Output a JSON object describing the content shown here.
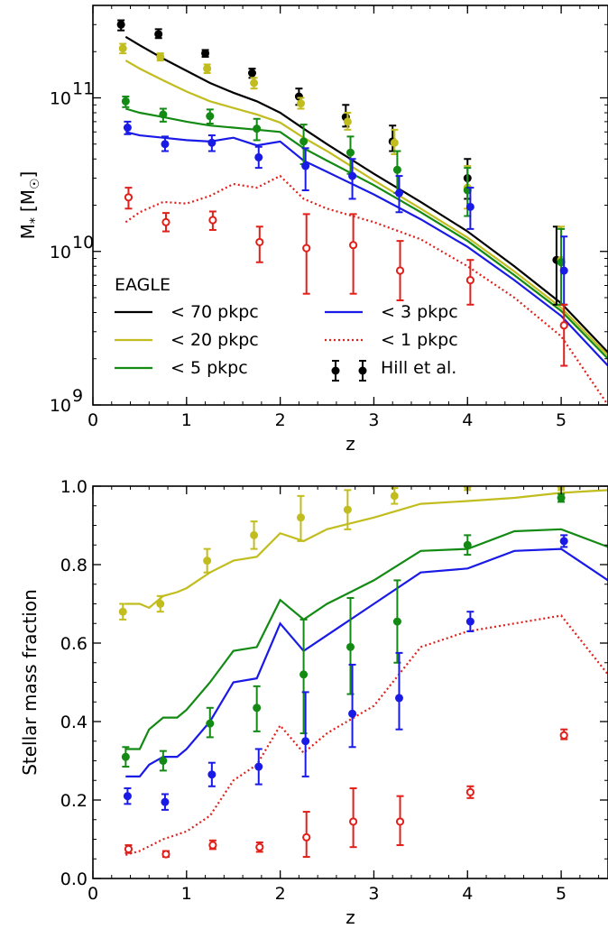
{
  "chart_data": [
    {
      "type": "line",
      "xlabel": "z",
      "ylabel_main": "M",
      "ylabel_sub": "*",
      "ylabel_unit": "[M",
      "ylabel_sun": "☉",
      "ylabel_close": "]",
      "xlim": [
        0,
        5.5
      ],
      "ylim": [
        1000000000.0,
        400000000000.0
      ],
      "yscale": "log",
      "grid": false,
      "x_ticks": [
        "0",
        "1",
        "2",
        "3",
        "4",
        "5"
      ],
      "y_ticks": [
        {
          "base": "10",
          "exp": "9",
          "value": 1000000000.0
        },
        {
          "base": "10",
          "exp": "10",
          "value": 10000000000.0
        },
        {
          "base": "10",
          "exp": "11",
          "value": 100000000000.0
        }
      ],
      "legend": {
        "placement": "lower-left",
        "title": "EAGLE",
        "entries": [
          {
            "label": "< 70 pkpc",
            "color": "#000000",
            "style": "solid"
          },
          {
            "label": "< 20 pkpc",
            "color": "#c2bd1f",
            "style": "solid"
          },
          {
            "label": "< 5 pkpc",
            "color": "#138a13",
            "style": "solid"
          },
          {
            "label": "< 3 pkpc",
            "color": "#1a1ae6",
            "style": "solid"
          },
          {
            "label": "< 1 pkpc",
            "color": "#e0201b",
            "style": "dotted"
          },
          {
            "label": "Hill et al.",
            "color": "#000000",
            "style": "errorbar"
          }
        ]
      },
      "series": [
        {
          "color": "#000000",
          "style": "solid",
          "x": [
            0.35,
            0.5,
            0.75,
            1.0,
            1.25,
            1.5,
            1.75,
            2.0,
            2.25,
            2.5,
            3.0,
            3.5,
            4.0,
            4.5,
            5.0,
            5.5
          ],
          "y": [
            250000000000.0,
            220000000000.0,
            180000000000.0,
            150000000000.0,
            125000000000.0,
            108000000000.0,
            95000000000.0,
            80000000000.0,
            63000000000.0,
            50000000000.0,
            32000000000.0,
            21000000000.0,
            13500000000.0,
            8000000000.0,
            4600000000.0,
            2200000000.0
          ]
        },
        {
          "color": "#c2bd1f",
          "style": "solid",
          "x": [
            0.35,
            0.5,
            0.75,
            1.0,
            1.25,
            1.5,
            1.75,
            2.0,
            2.25,
            2.5,
            3.0,
            3.5,
            4.0,
            4.5,
            5.0,
            5.5
          ],
          "y": [
            175000000000.0,
            155000000000.0,
            130000000000.0,
            110000000000.0,
            95000000000.0,
            86000000000.0,
            78000000000.0,
            69000000000.0,
            55000000000.0,
            45000000000.0,
            29000000000.0,
            19000000000.0,
            12300000000.0,
            7400000000.0,
            4300000000.0,
            2100000000.0
          ]
        },
        {
          "color": "#138a13",
          "style": "solid",
          "x": [
            0.35,
            0.5,
            0.75,
            1.0,
            1.25,
            1.5,
            1.75,
            2.0,
            2.25,
            2.5,
            3.0,
            3.5,
            4.0,
            4.5,
            5.0,
            5.5
          ],
          "y": [
            85000000000.0,
            80000000000.0,
            75000000000.0,
            70000000000.0,
            66000000000.0,
            64000000000.0,
            62000000000.0,
            60000000000.0,
            47000000000.0,
            39000000000.0,
            27000000000.0,
            18000000000.0,
            11700000000.0,
            7000000000.0,
            4100000000.0,
            2000000000.0
          ]
        },
        {
          "color": "#1a1ae6",
          "style": "solid",
          "x": [
            0.35,
            0.5,
            0.75,
            1.0,
            1.25,
            1.5,
            1.75,
            2.0,
            2.25,
            2.5,
            3.0,
            3.5,
            4.0,
            4.5,
            5.0,
            5.5
          ],
          "y": [
            60000000000.0,
            57000000000.0,
            55000000000.0,
            53000000000.0,
            52000000000.0,
            55000000000.0,
            49000000000.0,
            52000000000.0,
            39000000000.0,
            33000000000.0,
            23500000000.0,
            16200000000.0,
            10700000000.0,
            6500000000.0,
            3800000000.0,
            1800000000.0
          ]
        },
        {
          "color": "#e0201b",
          "style": "dotted",
          "x": [
            0.35,
            0.5,
            0.75,
            1.0,
            1.25,
            1.5,
            1.75,
            2.0,
            2.25,
            2.5,
            3.0,
            3.5,
            4.0,
            4.5,
            5.0,
            5.5
          ],
          "y": [
            15500000000.0,
            18000000000.0,
            21000000000.0,
            20500000000.0,
            23000000000.0,
            27500000000.0,
            26000000000.0,
            31000000000.0,
            22000000000.0,
            19000000000.0,
            15500000000.0,
            12000000000.0,
            8000000000.0,
            5000000000.0,
            2800000000.0,
            1000000000.0
          ]
        }
      ],
      "points": [
        {
          "color": "#000000",
          "filled": true,
          "x": [
            0.3,
            0.7,
            1.2,
            1.7,
            2.2,
            2.7,
            3.2,
            4.0,
            4.95
          ],
          "y": [
            300000000000.0,
            260000000000.0,
            195000000000.0,
            145000000000.0,
            102000000000.0,
            75000000000.0,
            52000000000.0,
            30000000000.0,
            8800000000.0
          ],
          "lo": [
            275000000000.0,
            245000000000.0,
            185000000000.0,
            135000000000.0,
            90000000000.0,
            65000000000.0,
            45000000000.0,
            22000000000.0,
            4500000000.0
          ],
          "hi": [
            320000000000.0,
            280000000000.0,
            205000000000.0,
            155000000000.0,
            115000000000.0,
            90000000000.0,
            66000000000.0,
            40000000000.0,
            14500000000.0
          ]
        },
        {
          "color": "#c2bd1f",
          "filled": true,
          "x": [
            0.32,
            0.72,
            1.22,
            1.72,
            2.22,
            2.72,
            3.22,
            4.0,
            5.0
          ],
          "y": [
            210000000000.0,
            185000000000.0,
            155000000000.0,
            125000000000.0,
            92000000000.0,
            70000000000.0,
            51000000000.0,
            26000000000.0,
            8800000000.0
          ],
          "lo": [
            195000000000.0,
            175000000000.0,
            145000000000.0,
            115000000000.0,
            85000000000.0,
            62000000000.0,
            43000000000.0,
            19000000000.0,
            4500000000.0
          ],
          "hi": [
            225000000000.0,
            195000000000.0,
            165000000000.0,
            135000000000.0,
            100000000000.0,
            80000000000.0,
            62000000000.0,
            36000000000.0,
            14500000000.0
          ]
        },
        {
          "color": "#138a13",
          "filled": true,
          "x": [
            0.35,
            0.75,
            1.25,
            1.75,
            2.25,
            2.75,
            3.25,
            4.0,
            5.0
          ],
          "y": [
            95000000000.0,
            78000000000.0,
            76000000000.0,
            63000000000.0,
            52000000000.0,
            44000000000.0,
            34000000000.0,
            25000000000.0,
            8500000000.0
          ],
          "lo": [
            87000000000.0,
            70000000000.0,
            68000000000.0,
            53000000000.0,
            37000000000.0,
            32000000000.0,
            24000000000.0,
            17000000000.0,
            4500000000.0
          ],
          "hi": [
            102000000000.0,
            85000000000.0,
            84000000000.0,
            73000000000.0,
            67000000000.0,
            56000000000.0,
            45000000000.0,
            35000000000.0,
            14000000000.0
          ]
        },
        {
          "color": "#1a1ae6",
          "filled": true,
          "x": [
            0.37,
            0.77,
            1.27,
            1.77,
            2.27,
            2.77,
            3.27,
            4.03,
            5.03
          ],
          "y": [
            64000000000.0,
            50000000000.0,
            51000000000.0,
            41000000000.0,
            36000000000.0,
            31000000000.0,
            24000000000.0,
            19500000000.0,
            7500000000.0
          ],
          "lo": [
            58000000000.0,
            45000000000.0,
            45000000000.0,
            35000000000.0,
            25000000000.0,
            22000000000.0,
            18000000000.0,
            14000000000.0,
            4500000000.0
          ],
          "hi": [
            70000000000.0,
            56000000000.0,
            57000000000.0,
            48000000000.0,
            47000000000.0,
            40000000000.0,
            31000000000.0,
            26000000000.0,
            12500000000.0
          ]
        },
        {
          "color": "#e0201b",
          "filled": false,
          "x": [
            0.38,
            0.78,
            1.28,
            1.78,
            2.28,
            2.78,
            3.28,
            4.03,
            5.03
          ],
          "y": [
            22500000000.0,
            15500000000.0,
            16000000000.0,
            11500000000.0,
            10500000000.0,
            11000000000.0,
            7500000000.0,
            6500000000.0,
            3300000000.0
          ],
          "lo": [
            19000000000.0,
            13500000000.0,
            13800000000.0,
            8500000000.0,
            5300000000.0,
            5300000000.0,
            4800000000.0,
            4500000000.0,
            1800000000.0
          ],
          "hi": [
            26000000000.0,
            17800000000.0,
            18200000000.0,
            14500000000.0,
            17500000000.0,
            17500000000.0,
            11700000000.0,
            8800000000.0,
            4500000000.0
          ]
        }
      ]
    },
    {
      "type": "line",
      "xlabel": "z",
      "ylabel": "Stellar mass fraction",
      "xlim": [
        0,
        5.5
      ],
      "ylim": [
        0,
        1.0
      ],
      "grid": false,
      "x_ticks": [
        "0",
        "1",
        "2",
        "3",
        "4",
        "5"
      ],
      "y_ticks": [
        "0.0",
        "0.2",
        "0.4",
        "0.6",
        "0.8",
        "1.0"
      ],
      "series": [
        {
          "color": "#c2bd1f",
          "style": "solid",
          "x": [
            0.35,
            0.5,
            0.6,
            0.75,
            0.9,
            1.0,
            1.25,
            1.5,
            1.75,
            2.0,
            2.25,
            2.5,
            3.0,
            3.5,
            4.0,
            4.5,
            5.0,
            5.5
          ],
          "y": [
            0.7,
            0.7,
            0.69,
            0.72,
            0.73,
            0.74,
            0.78,
            0.81,
            0.82,
            0.88,
            0.86,
            0.89,
            0.92,
            0.955,
            0.962,
            0.97,
            0.983,
            0.99
          ]
        },
        {
          "color": "#138a13",
          "style": "solid",
          "x": [
            0.35,
            0.5,
            0.6,
            0.75,
            0.9,
            1.0,
            1.25,
            1.5,
            1.75,
            2.0,
            2.25,
            2.5,
            3.0,
            3.5,
            4.0,
            4.5,
            5.0,
            5.5
          ],
          "y": [
            0.33,
            0.33,
            0.38,
            0.41,
            0.41,
            0.43,
            0.5,
            0.58,
            0.59,
            0.71,
            0.66,
            0.7,
            0.76,
            0.835,
            0.84,
            0.885,
            0.89,
            0.845
          ]
        },
        {
          "color": "#1a1ae6",
          "style": "solid",
          "x": [
            0.35,
            0.5,
            0.6,
            0.75,
            0.9,
            1.0,
            1.25,
            1.5,
            1.75,
            2.0,
            2.25,
            2.5,
            3.0,
            3.5,
            4.0,
            4.5,
            5.0,
            5.5
          ],
          "y": [
            0.26,
            0.26,
            0.29,
            0.31,
            0.31,
            0.33,
            0.4,
            0.5,
            0.51,
            0.65,
            0.58,
            0.62,
            0.7,
            0.78,
            0.79,
            0.835,
            0.84,
            0.76
          ]
        },
        {
          "color": "#e0201b",
          "style": "dotted",
          "x": [
            0.35,
            0.5,
            0.75,
            1.0,
            1.25,
            1.5,
            1.75,
            2.0,
            2.25,
            2.5,
            3.0,
            3.5,
            4.0,
            4.5,
            5.0,
            5.5
          ],
          "y": [
            0.06,
            0.07,
            0.1,
            0.12,
            0.16,
            0.25,
            0.29,
            0.39,
            0.32,
            0.37,
            0.44,
            0.59,
            0.63,
            0.65,
            0.67,
            0.52
          ]
        }
      ],
      "points": [
        {
          "color": "#c2bd1f",
          "filled": true,
          "x": [
            0.32,
            0.72,
            1.22,
            1.72,
            2.22,
            2.72,
            3.22,
            4.0,
            5.0
          ],
          "y": [
            0.68,
            0.7,
            0.81,
            0.875,
            0.92,
            0.94,
            0.975,
            1.0,
            1.0
          ],
          "lo": [
            0.66,
            0.68,
            0.78,
            0.84,
            0.86,
            0.89,
            0.955,
            0.99,
            0.99
          ],
          "hi": [
            0.7,
            0.72,
            0.84,
            0.91,
            0.975,
            0.99,
            0.995,
            1.01,
            1.01
          ]
        },
        {
          "color": "#138a13",
          "filled": true,
          "x": [
            0.35,
            0.75,
            1.25,
            1.75,
            2.25,
            2.75,
            3.25,
            4.0,
            5.0
          ],
          "y": [
            0.31,
            0.3,
            0.395,
            0.435,
            0.52,
            0.59,
            0.655,
            0.85,
            0.97
          ],
          "lo": [
            0.285,
            0.275,
            0.36,
            0.375,
            0.37,
            0.47,
            0.55,
            0.825,
            0.96
          ],
          "hi": [
            0.335,
            0.325,
            0.435,
            0.49,
            0.66,
            0.715,
            0.76,
            0.875,
            0.98
          ]
        },
        {
          "color": "#1a1ae6",
          "filled": true,
          "x": [
            0.37,
            0.77,
            1.27,
            1.77,
            2.27,
            2.77,
            3.27,
            4.03,
            5.03
          ],
          "y": [
            0.21,
            0.195,
            0.265,
            0.285,
            0.35,
            0.42,
            0.46,
            0.655,
            0.86
          ],
          "lo": [
            0.19,
            0.175,
            0.235,
            0.24,
            0.26,
            0.335,
            0.38,
            0.63,
            0.845
          ],
          "hi": [
            0.23,
            0.215,
            0.295,
            0.33,
            0.475,
            0.545,
            0.575,
            0.68,
            0.875
          ]
        },
        {
          "color": "#e0201b",
          "filled": false,
          "x": [
            0.38,
            0.78,
            1.28,
            1.78,
            2.28,
            2.78,
            3.28,
            4.03,
            5.03
          ],
          "y": [
            0.075,
            0.062,
            0.085,
            0.08,
            0.105,
            0.145,
            0.145,
            0.22,
            0.365
          ],
          "lo": [
            0.065,
            0.055,
            0.075,
            0.068,
            0.055,
            0.08,
            0.085,
            0.205,
            0.355
          ],
          "hi": [
            0.085,
            0.07,
            0.097,
            0.092,
            0.17,
            0.23,
            0.21,
            0.235,
            0.38
          ]
        }
      ]
    }
  ]
}
